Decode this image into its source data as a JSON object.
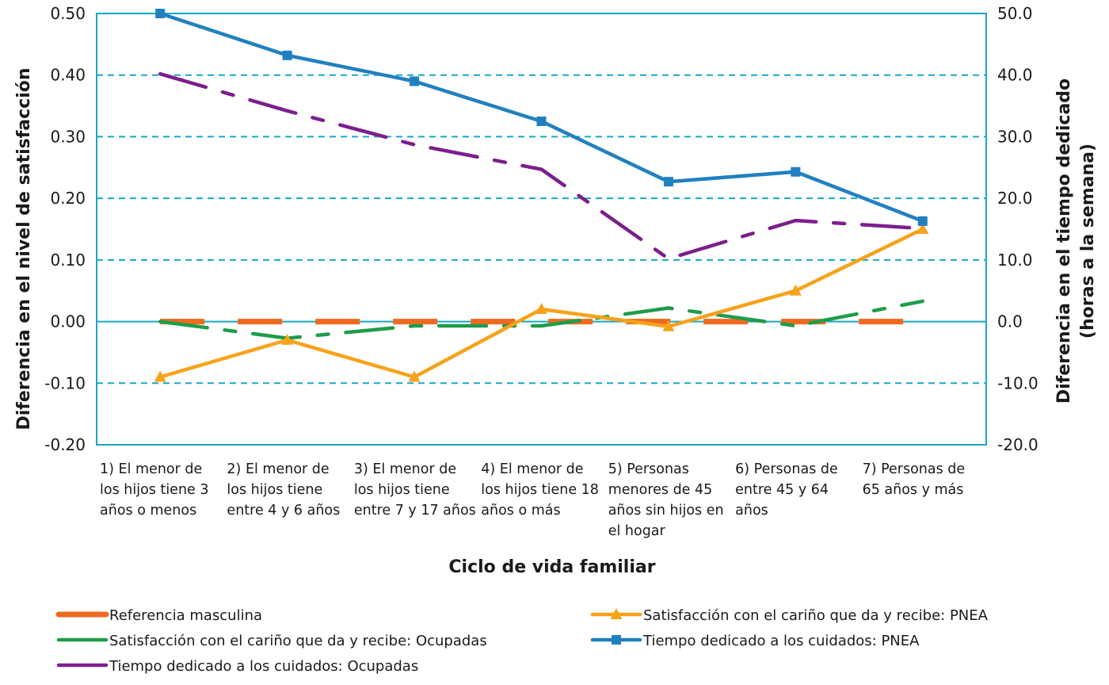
{
  "chart_data": {
    "type": "line",
    "xlabel": "Ciclo de vida familiar",
    "ylabel_left": "Diferencia en el nivel de satisfacción",
    "ylabel_right": [
      "Diferencia en el tiempo dedicado",
      "(horas a la semana)"
    ],
    "ylim_left": [
      -0.2,
      0.5
    ],
    "ylim_right": [
      -20,
      50
    ],
    "yticks_left": [
      "0.50",
      "0.40",
      "0.30",
      "0.20",
      "0.10",
      "0.00",
      "-0.10",
      "-0.20"
    ],
    "yticks_right": [
      "50.0",
      "40.0",
      "30.0",
      "20.0",
      "10.0",
      "0.0",
      "-10.0",
      "-20.0"
    ],
    "grid": "horizontal dashed",
    "legend_position": "bottom",
    "categories": [
      [
        "1) El menor de",
        "los hijos tiene 3",
        "años o menos"
      ],
      [
        "2) El menor de",
        "los hijos tiene",
        "entre 4 y 6 años"
      ],
      [
        "3) El menor de",
        "los hijos tiene",
        "entre 7 y 17 años"
      ],
      [
        "4) El menor de",
        "los hijos tiene 18",
        "años o más"
      ],
      [
        "5) Personas",
        "menores de 45",
        "años sin hijos en",
        "el hogar"
      ],
      [
        "6) Personas de",
        "entre 45 y 64",
        "años"
      ],
      [
        "7) Personas de",
        "65 años y más"
      ]
    ],
    "series": [
      {
        "name": "Referencia masculina",
        "axis": "left",
        "color": "#ee6a1f",
        "style": "dashed-thick",
        "marker": "none",
        "values": [
          0,
          0,
          0,
          0,
          0,
          0,
          0
        ]
      },
      {
        "name": "Satisfacción con el cariño que da y recibe: PNEA",
        "axis": "left",
        "color": "#f7a21b",
        "style": "solid",
        "marker": "triangle",
        "values": [
          -0.09,
          -0.03,
          -0.09,
          0.02,
          -0.008,
          0.05,
          0.15
        ]
      },
      {
        "name": "Satisfacción con el cariño que da y recibe: Ocupadas",
        "axis": "left",
        "color": "#1f9c4a",
        "style": "dash-dot",
        "marker": "none",
        "values": [
          0.0,
          -0.027,
          -0.007,
          -0.007,
          0.022,
          -0.007,
          0.033
        ]
      },
      {
        "name": "Tiempo dedicado a los cuidados: PNEA",
        "axis": "right",
        "color": "#2180c0",
        "style": "solid",
        "marker": "square",
        "values": [
          50,
          43.2,
          39,
          32.5,
          22.7,
          24.3,
          16.3
        ]
      },
      {
        "name": "Tiempo dedicado a los cuidados: Ocupadas",
        "axis": "right",
        "color": "#7b1f8c",
        "style": "dash-dot",
        "marker": "none",
        "values": [
          40.2,
          34.2,
          28.7,
          24.7,
          10.2,
          16.4,
          15.1
        ]
      }
    ],
    "legend_layout": [
      {
        "series": 0,
        "col": 0,
        "row": 0
      },
      {
        "series": 1,
        "col": 1,
        "row": 0
      },
      {
        "series": 2,
        "col": 0,
        "row": 1
      },
      {
        "series": 3,
        "col": 1,
        "row": 1
      },
      {
        "series": 4,
        "col": 0,
        "row": 2
      }
    ]
  }
}
